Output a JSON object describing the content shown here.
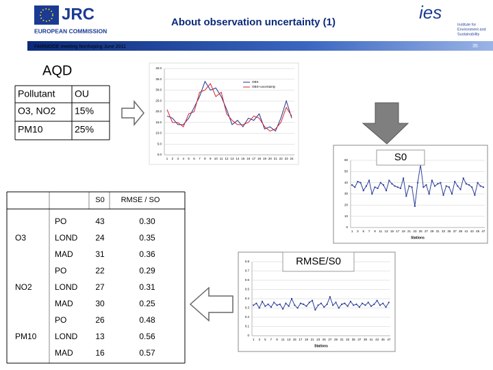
{
  "header": {
    "title": "About observation uncertainty (1)",
    "footer": "FAIRMODE meeting Norrkoping June 2011",
    "page": "35",
    "left_logo": {
      "name": "JRC",
      "org": "EUROPEAN COMMISSION"
    },
    "right_logo": {
      "name": "ies",
      "org": [
        "Institute for",
        "Environment and",
        "Sustainability"
      ]
    }
  },
  "aqd": {
    "title": "AQD",
    "header": [
      "Pollutant",
      "OU"
    ],
    "rows": [
      [
        "O3, NO2",
        "15%"
      ],
      [
        "PM10",
        "25%"
      ]
    ]
  },
  "labels": {
    "s0": "S0",
    "rmse": "RMSE/S0"
  },
  "table": {
    "header": [
      "S0",
      "RMSE / SO"
    ],
    "groups": [
      {
        "name": "O3",
        "rows": [
          [
            "PO",
            "43",
            "0.30"
          ],
          [
            "LOND",
            "24",
            "0.35"
          ],
          [
            "MAD",
            "31",
            "0.36"
          ]
        ]
      },
      {
        "name": "NO2",
        "rows": [
          [
            "PO",
            "22",
            "0.29"
          ],
          [
            "LOND",
            "27",
            "0.31"
          ],
          [
            "MAD",
            "30",
            "0.25"
          ]
        ]
      },
      {
        "name": "PM10",
        "rows": [
          [
            "PO",
            "26",
            "0.48"
          ],
          [
            "LOND",
            "13",
            "0.56"
          ],
          [
            "MAD",
            "16",
            "0.57"
          ]
        ]
      }
    ]
  },
  "chart_data": [
    {
      "type": "line",
      "categories": [
        "1",
        "2",
        "3",
        "4",
        "5",
        "6",
        "7",
        "8",
        "9",
        "10",
        "11",
        "12",
        "13",
        "14",
        "15",
        "16",
        "17",
        "18",
        "19",
        "20",
        "21",
        "22",
        "23",
        "24"
      ],
      "series": [
        {
          "name": "OBS",
          "color": "#1f2f8a",
          "values": [
            18,
            17,
            14,
            14,
            17,
            22,
            27,
            34,
            30,
            31,
            27,
            21,
            14,
            16,
            13,
            17,
            16,
            19,
            12,
            13,
            11,
            17,
            25,
            17
          ]
        },
        {
          "name": "OBS+uncertainty",
          "color": "#d6202a",
          "values": [
            21,
            15,
            15,
            13,
            19,
            20,
            29,
            30,
            33,
            27,
            29,
            19,
            16,
            14,
            14,
            15,
            18,
            17,
            13,
            11,
            12,
            15,
            22,
            18
          ]
        }
      ],
      "ylim": [
        0,
        40
      ],
      "yticks": [
        {
          "value": 0,
          "label": "0.0"
        },
        {
          "value": 5,
          "label": "5.0"
        },
        {
          "value": 10,
          "label": "10.0"
        },
        {
          "value": 15,
          "label": "15.0"
        },
        {
          "value": 20,
          "label": "20.0"
        },
        {
          "value": 25,
          "label": "25.0"
        },
        {
          "value": 30,
          "label": "30.0"
        },
        {
          "value": 35,
          "label": "35.0"
        },
        {
          "value": 40,
          "label": "40.0"
        }
      ],
      "grid": true,
      "legend": "upper right"
    },
    {
      "type": "line",
      "x_label": "Stations",
      "categories": [
        "1",
        null,
        "3",
        null,
        "5",
        null,
        "7",
        null,
        "9",
        null,
        "11",
        null,
        "13",
        null,
        "15",
        null,
        "17",
        null,
        "19",
        null,
        "21",
        null,
        "23",
        null,
        "25",
        null,
        "27",
        null,
        "29",
        null,
        "31",
        null,
        "33",
        null,
        "35",
        null,
        "37",
        null,
        "39",
        null,
        "41",
        null,
        "43",
        null,
        "45",
        null,
        "47"
      ],
      "series": [
        {
          "name": "S0",
          "color": "#2b3f9a",
          "values": [
            38,
            36,
            41,
            40,
            33,
            37,
            42,
            30,
            36,
            35,
            40,
            38,
            33,
            42,
            39,
            37,
            36,
            35,
            44,
            28,
            37,
            36,
            19,
            40,
            56,
            36,
            38,
            30,
            42,
            37,
            39,
            40,
            29,
            37,
            36,
            30,
            41,
            37,
            34,
            44,
            39,
            38,
            36,
            29,
            40,
            37,
            36
          ]
        }
      ],
      "ylim": [
        0,
        60
      ],
      "yticks": [
        0,
        10,
        20,
        30,
        40,
        50,
        60
      ],
      "grid": true
    },
    {
      "type": "line",
      "x_label": "Stations",
      "categories": [
        "1",
        null,
        "3",
        null,
        "5",
        null,
        "7",
        null,
        "9",
        null,
        "11",
        null,
        "13",
        null,
        "15",
        null,
        "17",
        null,
        "19",
        null,
        "21",
        null,
        "23",
        null,
        "25",
        null,
        "27",
        null,
        "29",
        null,
        "31",
        null,
        "33",
        null,
        "35",
        null,
        "37",
        null,
        "39",
        null,
        "41",
        null,
        "43",
        null,
        "45",
        null,
        "47"
      ],
      "series": [
        {
          "name": "RMSE/S0",
          "color": "#2b3f9a",
          "values": [
            0.33,
            0.35,
            0.3,
            0.37,
            0.32,
            0.34,
            0.31,
            0.36,
            0.33,
            0.34,
            0.29,
            0.35,
            0.32,
            0.4,
            0.33,
            0.3,
            0.35,
            0.34,
            0.32,
            0.36,
            0.38,
            0.28,
            0.33,
            0.35,
            0.31,
            0.34,
            0.42,
            0.33,
            0.36,
            0.3,
            0.34,
            0.35,
            0.32,
            0.37,
            0.33,
            0.34,
            0.31,
            0.35,
            0.33,
            0.36,
            0.32,
            0.34,
            0.38,
            0.33,
            0.35,
            0.31,
            0.36
          ]
        }
      ],
      "ylim": [
        0,
        0.8
      ],
      "yticks": [
        0,
        0.1,
        0.2,
        0.3,
        0.4,
        0.5,
        0.6,
        0.7,
        0.8
      ],
      "grid": true
    }
  ]
}
